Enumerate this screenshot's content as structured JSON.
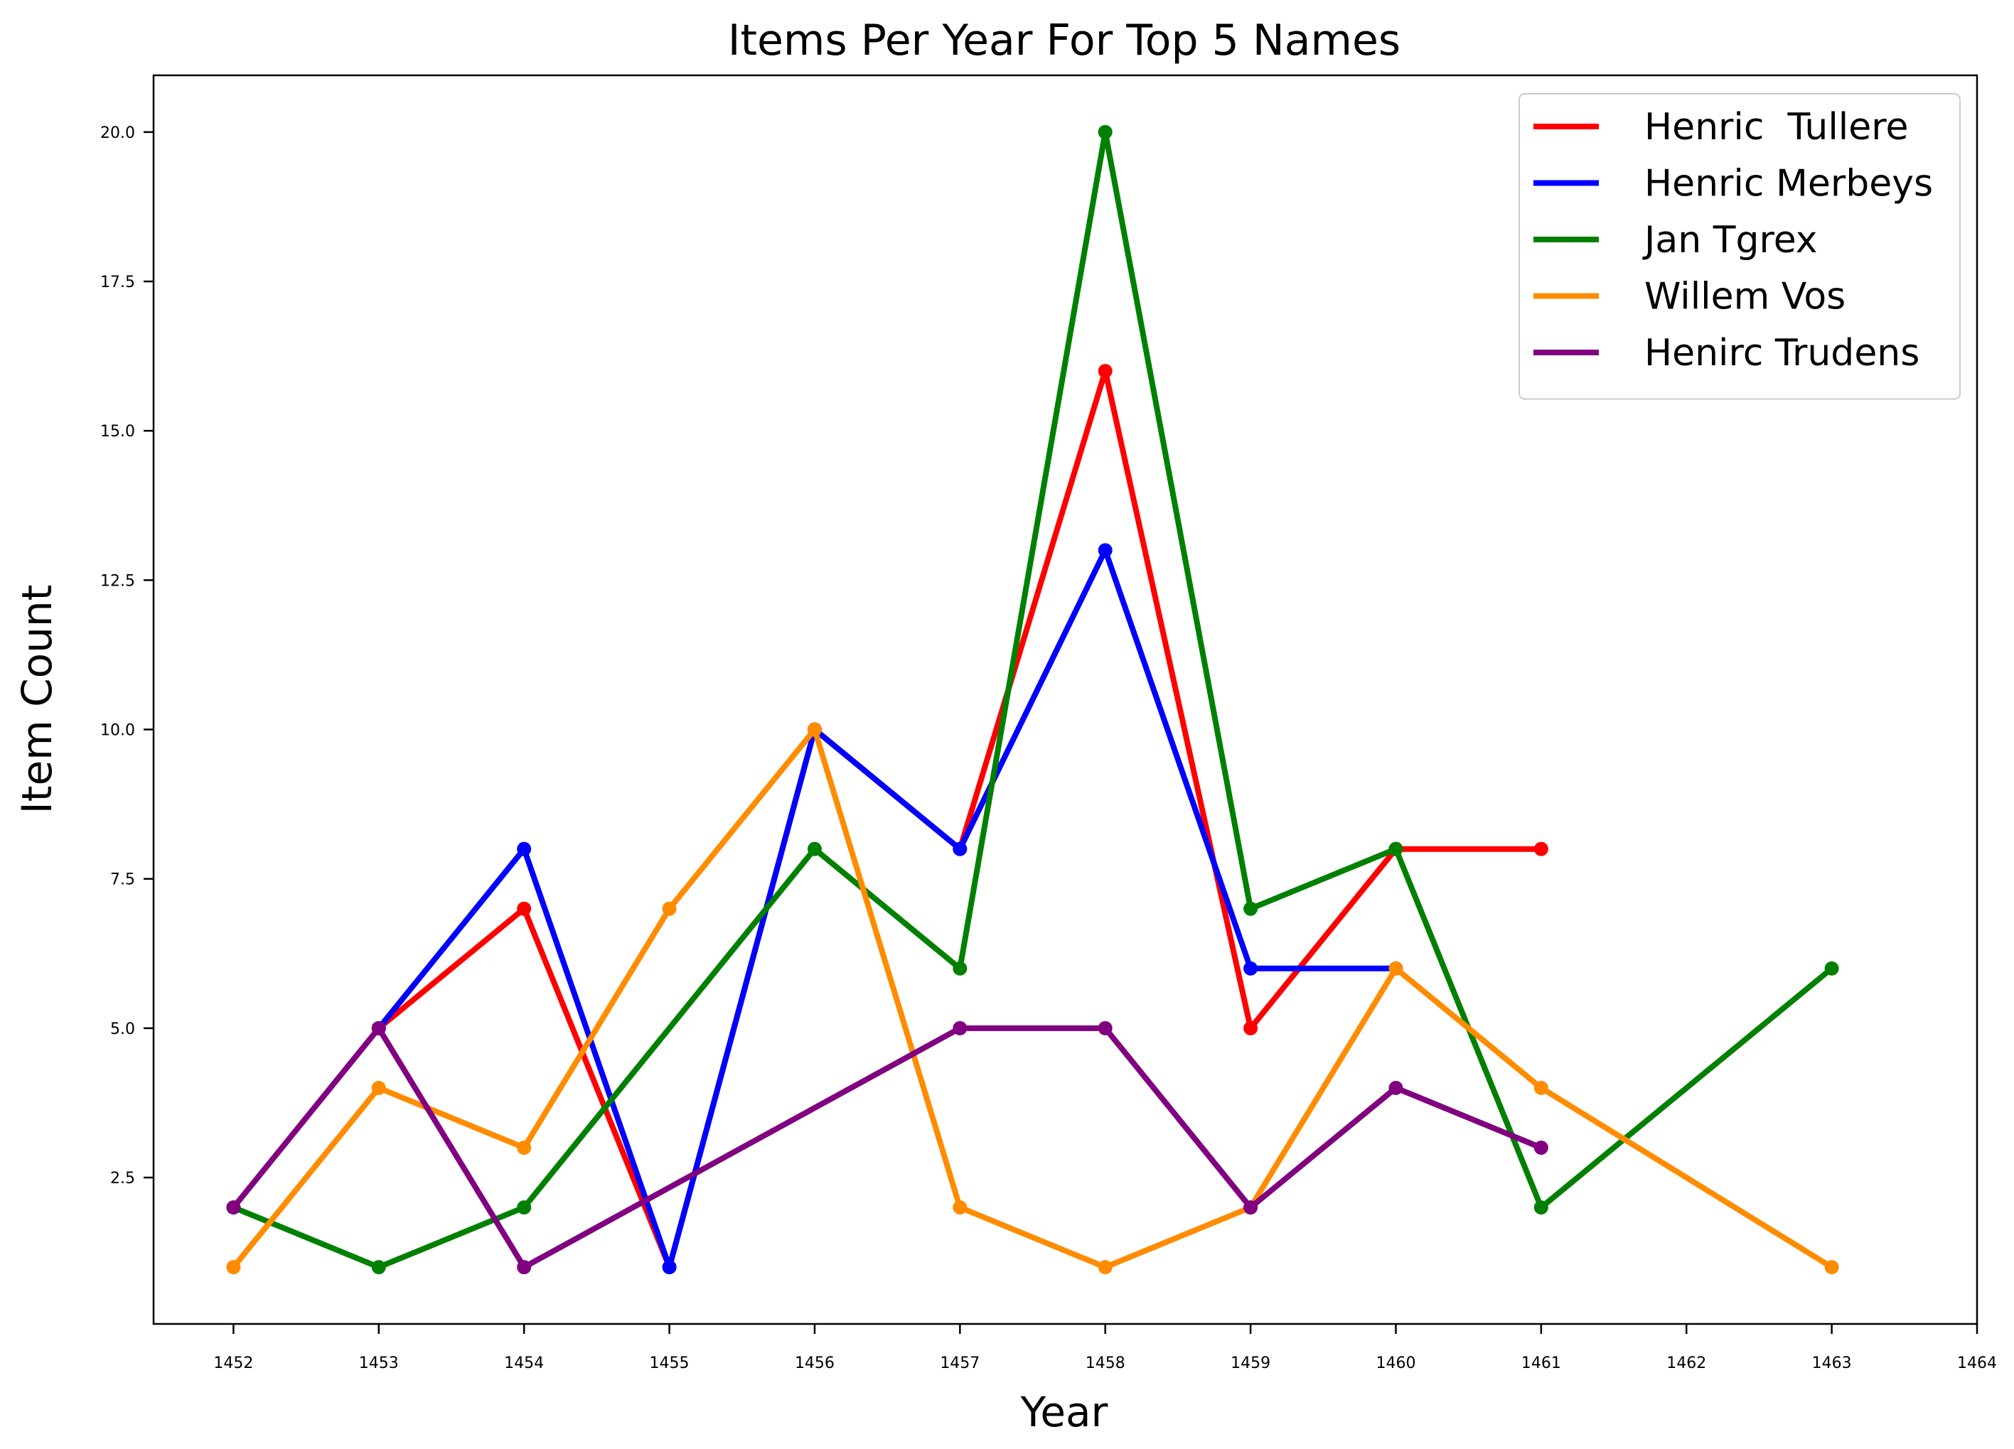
{
  "chart_data": {
    "type": "line",
    "title": "Items Per Year For Top 5 Names",
    "xlabel": "Year",
    "ylabel": "Item Count",
    "xlim": [
      1451.45,
      1464
    ],
    "ylim": [
      0.05,
      20.95
    ],
    "xticks": [
      1452,
      1453,
      1454,
      1455,
      1456,
      1457,
      1458,
      1459,
      1460,
      1461,
      1462,
      1463,
      1464
    ],
    "xtick_labels": [
      "1452",
      "1453",
      "1454",
      "1455",
      "1456",
      "1457",
      "1458",
      "1459",
      "1460",
      "1461",
      "1462",
      "1463",
      "1464"
    ],
    "yticks": [
      2.5,
      5.0,
      7.5,
      10.0,
      12.5,
      15.0,
      17.5,
      20.0
    ],
    "ytick_labels": [
      "2.5",
      "5.0",
      "7.5",
      "10.0",
      "12.5",
      "15.0",
      "17.5",
      "20.0"
    ],
    "grid": false,
    "legend_position": "top-right",
    "series": [
      {
        "name": "Henric  Tullere",
        "color": "#ff0000",
        "x": [
          1453,
          1454,
          1455,
          1456,
          1457,
          1458,
          1459,
          1460,
          1461
        ],
        "y": [
          5,
          7,
          1,
          10,
          8,
          16,
          5,
          8,
          8
        ]
      },
      {
        "name": "Henric Merbeys",
        "color": "#0000ff",
        "x": [
          1453,
          1454,
          1455,
          1456,
          1457,
          1458,
          1459,
          1460
        ],
        "y": [
          5,
          8,
          1,
          10,
          8,
          13,
          6,
          6
        ]
      },
      {
        "name": "Jan Tgrex",
        "color": "#008000",
        "x": [
          1452,
          1453,
          1454,
          1456,
          1457,
          1458,
          1459,
          1460,
          1461,
          1463
        ],
        "y": [
          2,
          1,
          2,
          8,
          6,
          20,
          7,
          8,
          2,
          6
        ]
      },
      {
        "name": "Willem Vos",
        "color": "#ff8c00",
        "x": [
          1452,
          1453,
          1454,
          1455,
          1456,
          1457,
          1458,
          1459,
          1460,
          1461,
          1463
        ],
        "y": [
          1,
          4,
          3,
          7,
          10,
          2,
          1,
          2,
          6,
          4,
          1
        ]
      },
      {
        "name": "Henirc Trudens",
        "color": "#800080",
        "x": [
          1452,
          1453,
          1454,
          1457,
          1458,
          1459,
          1460,
          1461
        ],
        "y": [
          2,
          5,
          1,
          5,
          5,
          2,
          4,
          3
        ]
      }
    ]
  }
}
